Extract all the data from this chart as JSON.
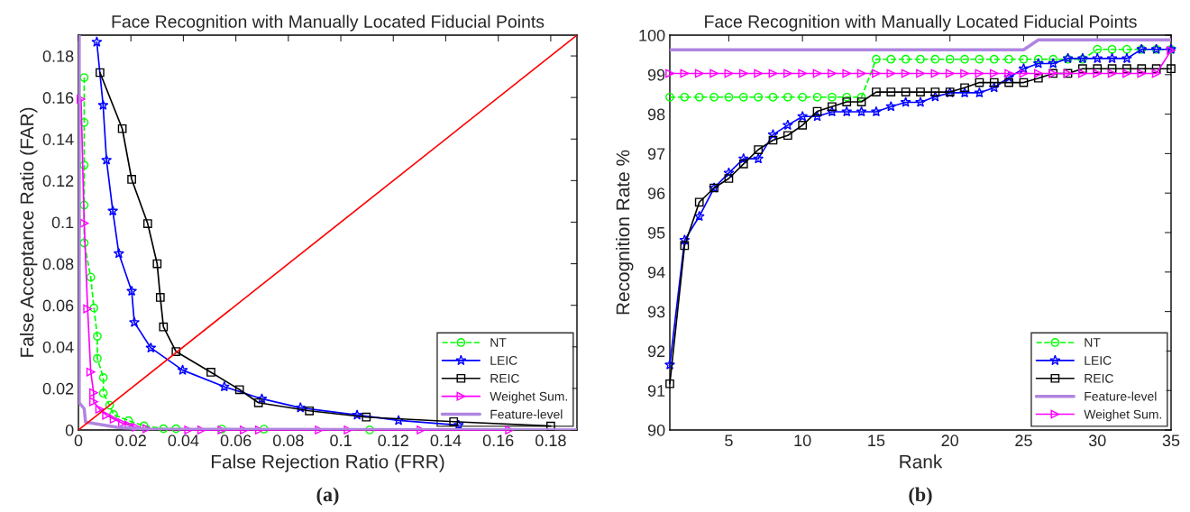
{
  "chart_data": [
    {
      "type": "line",
      "title": "Face Recognition with Manually Located Fiducial Points",
      "xlabel": "False Rejection Ratio (FRR)",
      "ylabel": "False Acceptance Ratio (FAR)",
      "annotations": [
        "(a)"
      ],
      "xlim": [
        0,
        0.19
      ],
      "ylim": [
        0,
        0.19
      ],
      "xticks": [
        0,
        0.02,
        0.04,
        0.06,
        0.08,
        0.1,
        0.12,
        0.14,
        0.16,
        0.18
      ],
      "yticks": [
        0,
        0.02,
        0.04,
        0.06,
        0.08,
        0.1,
        0.12,
        0.14,
        0.16,
        0.18
      ],
      "grid": false,
      "legend": "bottom right",
      "series": [
        {
          "name": "NT",
          "color": "#00ff00",
          "marker": "circle",
          "line_style": "dashed",
          "x": [
            0.0022,
            0.0022,
            0.0022,
            0.0022,
            0.0022,
            0.0047,
            0.0059,
            0.0072,
            0.0072,
            0.0095,
            0.0095,
            0.0119,
            0.0134,
            0.0191,
            0.025,
            0.0324,
            0.0372,
            0.0547,
            0.0707,
            0.111
          ],
          "values": [
            0.1696,
            0.148,
            0.1274,
            0.1082,
            0.09,
            0.0735,
            0.0587,
            0.0451,
            0.0344,
            0.0252,
            0.0177,
            0.0119,
            0.0074,
            0.0045,
            0.002,
            0.0006,
            0.0006,
            0.0004,
            0.0004,
            0
          ]
        },
        {
          "name": "LEIC",
          "color": "#0000ff",
          "marker": "star",
          "line_style": "solid",
          "x": [
            0.007,
            0.0094,
            0.0107,
            0.0131,
            0.0154,
            0.0203,
            0.0213,
            0.0276,
            0.0397,
            0.0556,
            0.0699,
            0.0846,
            0.1062,
            0.122,
            0.1449
          ],
          "values": [
            0.1867,
            0.1563,
            0.1299,
            0.1054,
            0.0849,
            0.0668,
            0.0518,
            0.0395,
            0.0288,
            0.0208,
            0.015,
            0.0107,
            0.0072,
            0.0046,
            0.0023
          ]
        },
        {
          "name": "REIC",
          "color": "#000000",
          "marker": "square",
          "line_style": "solid",
          "x": [
            0.0082,
            0.0167,
            0.0203,
            0.0264,
            0.03,
            0.0312,
            0.0324,
            0.0372,
            0.0505,
            0.0614,
            0.0686,
            0.088,
            0.1097,
            0.143,
            0.18
          ],
          "values": [
            0.172,
            0.145,
            0.1206,
            0.0993,
            0.08,
            0.0638,
            0.0496,
            0.0377,
            0.0278,
            0.0194,
            0.0131,
            0.0092,
            0.0062,
            0.004,
            0.0019
          ]
        },
        {
          "name": "Weighet Sum.",
          "color": "#ff00ff",
          "marker": "triangle",
          "line_style": "solid",
          "x": [
            0.001,
            0.0022,
            0.0035,
            0.0047,
            0.0058,
            0.0058,
            0.0081,
            0.0107,
            0.0136,
            0.0168,
            0.0193,
            0.0221,
            0.0261,
            0.042,
            0.047,
            0.0547,
            0.0632,
            0.069,
            0.0918,
            0.1028,
            0.1306,
            0.1643
          ],
          "values": [
            0.1592,
            0.0995,
            0.0583,
            0.0279,
            0.0179,
            0.0136,
            0.01,
            0.0071,
            0.0052,
            0.0033,
            0.0023,
            0.0013,
            0.0006,
            0,
            0,
            0,
            0,
            0,
            0,
            0,
            0,
            0
          ]
        },
        {
          "name": "Feature-level",
          "color": "#b085e0",
          "marker": "none",
          "line_style": "solid",
          "x": [
            0.0003,
            0.0003,
            0.0022,
            0.0027,
            0.0147,
            0.026,
            0.19
          ],
          "values": [
            0.19,
            0.0131,
            0.0103,
            0.0038,
            0.0013,
            0.0004,
            0
          ]
        },
        {
          "color": "#ff0000",
          "marker": "none",
          "line_style": "solid",
          "x": [
            0,
            0.19
          ],
          "values": [
            0,
            0.19
          ]
        }
      ]
    },
    {
      "type": "line",
      "title": "Face Recognition with Manually Located Fiducial Points",
      "xlabel": "Rank",
      "ylabel": "Recognition Rate %",
      "annotations": [
        "(b)"
      ],
      "xlim": [
        1,
        35
      ],
      "ylim": [
        90,
        100
      ],
      "xticks": [
        5,
        10,
        15,
        20,
        25,
        30,
        35
      ],
      "yticks": [
        90,
        91,
        92,
        93,
        94,
        95,
        96,
        97,
        98,
        99,
        100
      ],
      "grid": false,
      "legend": "bottom right",
      "x": [
        1,
        2,
        3,
        4,
        5,
        6,
        7,
        8,
        9,
        10,
        11,
        12,
        13,
        14,
        15,
        16,
        17,
        18,
        19,
        20,
        21,
        22,
        23,
        24,
        25,
        26,
        27,
        28,
        29,
        30,
        31,
        32,
        33,
        34,
        35
      ],
      "series": [
        {
          "name": "NT",
          "color": "#00ff00",
          "marker": "circle",
          "line_style": "dashed",
          "values": [
            98.43,
            98.43,
            98.43,
            98.43,
            98.43,
            98.43,
            98.43,
            98.43,
            98.43,
            98.43,
            98.43,
            98.43,
            98.43,
            98.43,
            99.39,
            99.39,
            99.39,
            99.39,
            99.39,
            99.39,
            99.39,
            99.39,
            99.39,
            99.39,
            99.39,
            99.39,
            99.39,
            99.39,
            99.39,
            99.64,
            99.64,
            99.64,
            99.64,
            99.64,
            99.64
          ]
        },
        {
          "name": "LEIC",
          "color": "#0000ff",
          "marker": "star",
          "line_style": "solid",
          "values": [
            91.65,
            94.81,
            95.41,
            96.13,
            96.51,
            96.87,
            96.87,
            97.48,
            97.72,
            97.94,
            97.94,
            98.06,
            98.06,
            98.06,
            98.06,
            98.19,
            98.3,
            98.3,
            98.44,
            98.54,
            98.54,
            98.54,
            98.67,
            98.93,
            99.15,
            99.28,
            99.28,
            99.41,
            99.41,
            99.41,
            99.41,
            99.41,
            99.64,
            99.64,
            99.64
          ]
        },
        {
          "name": "REIC",
          "color": "#000000",
          "marker": "square",
          "line_style": "solid",
          "values": [
            91.17,
            94.67,
            95.77,
            96.13,
            96.37,
            96.74,
            97.1,
            97.34,
            97.46,
            97.72,
            98.07,
            98.19,
            98.31,
            98.31,
            98.56,
            98.56,
            98.56,
            98.56,
            98.56,
            98.56,
            98.67,
            98.8,
            98.8,
            98.8,
            98.8,
            98.91,
            99.03,
            99.03,
            99.15,
            99.15,
            99.15,
            99.15,
            99.15,
            99.15,
            99.15
          ]
        },
        {
          "name": "Feature-level",
          "color": "#b085e0",
          "marker": "none",
          "line_style": "solid",
          "values": [
            99.63,
            99.63,
            99.63,
            99.63,
            99.63,
            99.63,
            99.63,
            99.63,
            99.63,
            99.63,
            99.63,
            99.63,
            99.63,
            99.63,
            99.63,
            99.63,
            99.63,
            99.63,
            99.63,
            99.63,
            99.63,
            99.63,
            99.63,
            99.63,
            99.63,
            99.88,
            99.88,
            99.88,
            99.88,
            99.88,
            99.88,
            99.88,
            99.88,
            99.88,
            99.88
          ]
        },
        {
          "name": "Weighet Sum.",
          "color": "#ff00ff",
          "marker": "triangle",
          "line_style": "solid",
          "values": [
            99.03,
            99.03,
            99.03,
            99.03,
            99.03,
            99.03,
            99.03,
            99.03,
            99.03,
            99.03,
            99.03,
            99.03,
            99.03,
            99.03,
            99.03,
            99.03,
            99.03,
            99.03,
            99.03,
            99.03,
            99.03,
            99.03,
            99.03,
            99.03,
            99.03,
            99.03,
            99.03,
            99.03,
            99.03,
            99.03,
            99.03,
            99.03,
            99.03,
            99.03,
            99.61
          ]
        }
      ]
    }
  ]
}
